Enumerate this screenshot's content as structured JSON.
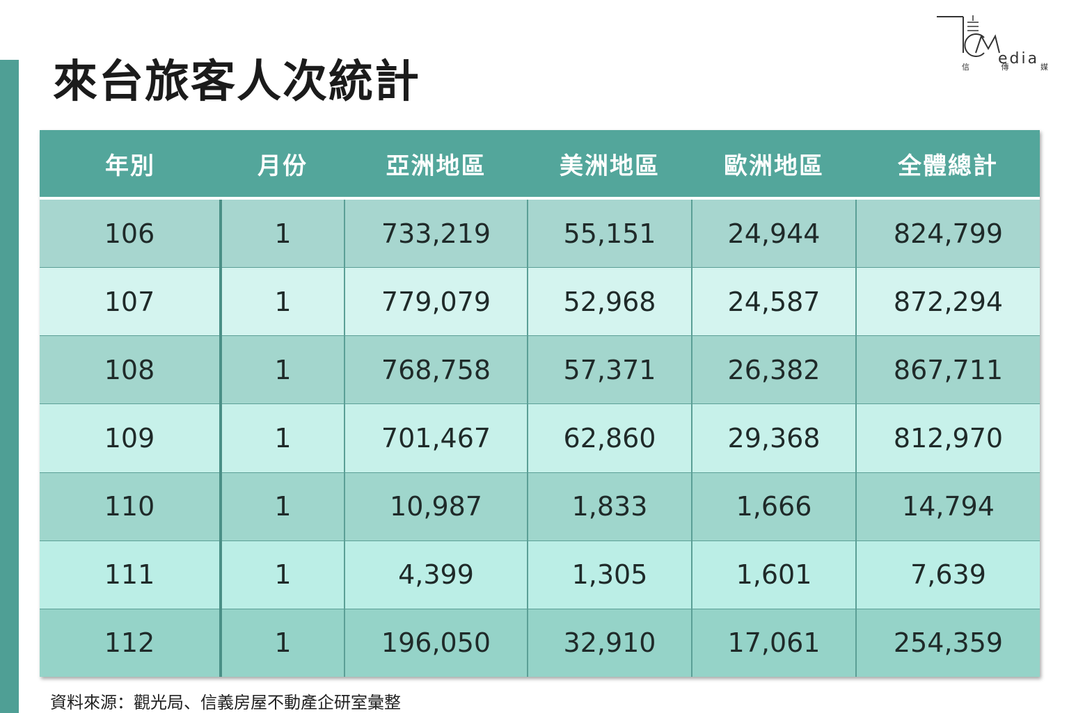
{
  "title": "來台旅客人次統計",
  "logo": {
    "word": "edia",
    "sub": [
      "信",
      "傳",
      "媒"
    ]
  },
  "table": {
    "headers": [
      "年別",
      "月份",
      "亞洲地區",
      "美洲地區",
      "歐洲地區",
      "全體總計"
    ],
    "rows": [
      [
        "106",
        "1",
        "733,219",
        "55,151",
        "24,944",
        "824,799"
      ],
      [
        "107",
        "1",
        "779,079",
        "52,968",
        "24,587",
        "872,294"
      ],
      [
        "108",
        "1",
        "768,758",
        "57,371",
        "26,382",
        "867,711"
      ],
      [
        "109",
        "1",
        "701,467",
        "62,860",
        "29,368",
        "812,970"
      ],
      [
        "110",
        "1",
        "10,987",
        "1,833",
        "1,666",
        "14,794"
      ],
      [
        "111",
        "1",
        "4,399",
        "1,305",
        "1,601",
        "7,639"
      ],
      [
        "112",
        "1",
        "196,050",
        "32,910",
        "17,061",
        "254,359"
      ]
    ]
  },
  "source": "資料來源：觀光局、信義房屋不動產企研室彙整",
  "colors": {
    "accent": "#4f9f95",
    "header": "#53a69b"
  }
}
